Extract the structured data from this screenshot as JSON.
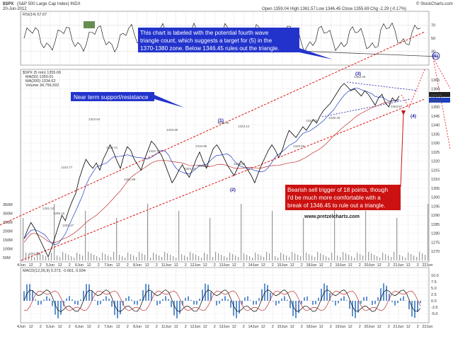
{
  "header": {
    "symbol": "$SPX",
    "exchange": "(S&P 500 Large Cap Index) INDX",
    "date": "20-Jun-2012",
    "open": "Open 1359.04",
    "high": "High 1361.57",
    "low": "Low 1346.45",
    "close": "Close 1355.69",
    "change": "Chg -2.29 (-0.17%)",
    "credit": "© StockCharts.com"
  },
  "panels": {
    "rsi_label": "RSI(14) 57.67",
    "price_label": "$SPX (5 min) 1355.69",
    "ma50_label": "MA(50) 1350.01",
    "ma200_label": "MA(200) 1334.62",
    "volume_label": "Volume 34,756,592",
    "macd_label": "MACD(12,26,9) 0.273, -0.661, 0.934",
    "last_price_tag": "1355.69",
    "signal_tag": "1352.68"
  },
  "annotations": {
    "top_note_l1": "This chart is labeled with the potential fourth wave",
    "top_note_l2": "triangle count, which suggests a target for (5) in the",
    "top_note_l3": "1370-1380 zone.  Below 1346.45 rules out the triangle.",
    "support_note": "Near term support/resistance",
    "bottom_note_l1": "Bearish sell trigger of 18 points, though",
    "bottom_note_l2": "I'd be much more comfortable with a",
    "bottom_note_l3": "break of 1346.45 to rule out a triangle.",
    "website": "www.pretzelcharts.com",
    "waves": [
      "(1)",
      "(2)",
      "(3)",
      "(4)",
      "(5)"
    ]
  },
  "colors": {
    "price": "#000000",
    "ma50": "#1e3fbf",
    "ma200": "#c03030",
    "channel": "#e01010",
    "note_fill": "#2233cc",
    "bottom_note_fill": "#cc1111",
    "rsi_overbought": "#4a7a32",
    "macd_hist": "#2a6ec0"
  },
  "chart_data": {
    "type": "line",
    "interval": "5 min",
    "x_axis_labels": [
      "4Jun",
      "12",
      "2",
      "5Jun",
      "12",
      "2",
      "6Jun",
      "12",
      "2",
      "7Jun",
      "12",
      "2",
      "8Jun",
      "12",
      "2",
      "11Jun",
      "12",
      "2",
      "12Jun",
      "12",
      "2",
      "13Jun",
      "12",
      "2",
      "14Jun",
      "12",
      "2",
      "15Jun",
      "12",
      "2",
      "18Jun",
      "12",
      "2",
      "19Jun",
      "12",
      "2",
      "20Jun",
      "12",
      "2",
      "21Jun",
      "12",
      "2",
      "22Jun"
    ],
    "price_ticks": [
      1270,
      1275,
      1280,
      1285,
      1290,
      1295,
      1300,
      1305,
      1310,
      1315,
      1320,
      1325,
      1330,
      1335,
      1340,
      1345,
      1350,
      1355,
      1360,
      1365
    ],
    "price_ylim": [
      1265,
      1370
    ],
    "volume_ticks": [
      "50M",
      "100M",
      "150M",
      "200M",
      "250M",
      "300M",
      "350M"
    ],
    "rsi_ticks": [
      30,
      50,
      70
    ],
    "macd_ticks": [
      -5.0,
      -2.5,
      0.0,
      2.5,
      5.0,
      7.5,
      10.0
    ],
    "price_series": [
      1277,
      1282,
      1286,
      1283,
      1279,
      1275,
      1271,
      1267,
      1272,
      1278,
      1284,
      1290,
      1287,
      1293,
      1298,
      1302,
      1310,
      1316,
      1321,
      1318,
      1316,
      1319,
      1315,
      1321,
      1325,
      1329,
      1325,
      1320,
      1316,
      1323,
      1328,
      1326,
      1321,
      1318,
      1315,
      1321,
      1326,
      1331,
      1329,
      1326,
      1323,
      1318,
      1313,
      1308,
      1311,
      1315,
      1318,
      1314,
      1311,
      1316,
      1321,
      1325,
      1320,
      1316,
      1322,
      1327,
      1329,
      1326,
      1322,
      1318,
      1315,
      1312,
      1316,
      1320,
      1318,
      1315,
      1312,
      1308,
      1313,
      1318,
      1322,
      1326,
      1329,
      1326,
      1322,
      1326,
      1332,
      1337,
      1335,
      1333,
      1336,
      1339,
      1337,
      1340,
      1343,
      1341,
      1345,
      1348,
      1350,
      1352,
      1355,
      1358,
      1361,
      1363,
      1361,
      1359,
      1360,
      1358,
      1356,
      1359,
      1357,
      1354,
      1351,
      1355,
      1357,
      1352,
      1350,
      1355,
      1353,
      1356
    ],
    "waves": [
      {
        "label": "(1)",
        "value": 1330
      },
      {
        "label": "(2)",
        "value": 1308
      },
      {
        "label": "(3)",
        "value": 1363
      },
      {
        "label": "(4)",
        "value": 1346.45
      },
      {
        "label": "(5)",
        "value": "1370-1380"
      }
    ],
    "price_level_labels": [
      "1267.20",
      "1281.10",
      "1285.16",
      "1291.27",
      "1310.77",
      "1323.64",
      "1325.41",
      "1321.89",
      "1328.90",
      "1322.70",
      "1306.60",
      "1304.93",
      "1316.85",
      "1328.45",
      "1323.12",
      "1306.54",
      "1326.50",
      "1344.75",
      "1339.46",
      "1363.46",
      "1353.87"
    ],
    "trigger_points": 18,
    "triangle_invalidation": 1346.45
  }
}
